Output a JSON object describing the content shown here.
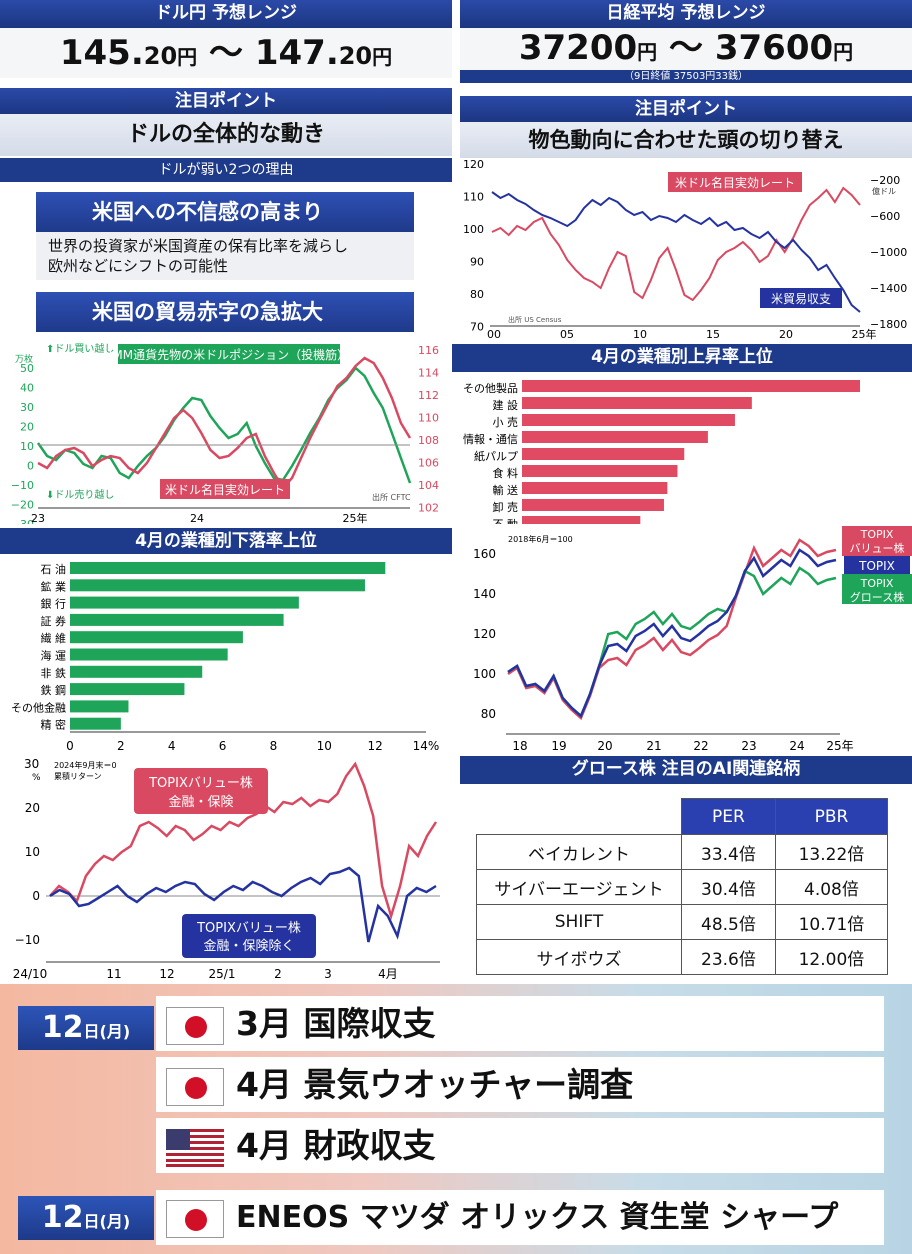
{
  "usdjpy": {
    "header": "ドル円 予想レンジ",
    "range_low": "145.",
    "range_low_dec": "20",
    "yen1": "円",
    "tilde": " ～ ",
    "range_high": "147.",
    "range_high_dec": "20",
    "yen2": "円",
    "focus_header": "注目ポイント",
    "focus_text": "ドルの全体的な動き",
    "reasons_header": "ドルが弱い2つの理由",
    "reason1_title": "米国への不信感の高まり",
    "reason1_body_line1": "世界の投資家が米国資産の保有比率を減らし",
    "reason1_body_line2": "欧州などにシフトの可能性",
    "reason2_title": "米国の貿易赤字の急拡大"
  },
  "nikkei": {
    "header": "日経平均 予想レンジ",
    "range_low": "37200",
    "yen1": "円",
    "tilde": " ～ ",
    "range_high": "37600",
    "yen2": "円",
    "close_note": "（9日終値 37503円33銭）",
    "focus_header": "注目ポイント",
    "focus_text": "物色動向に合わせた頭の切り替え"
  },
  "charts": {
    "imm": {
      "left_unit": "万枚",
      "buy_label": "⬆ドル買い越し",
      "sell_label": "⬇ドル売り越し",
      "left_ticks": [
        "50",
        "40",
        "30",
        "20",
        "10",
        "0",
        "−10",
        "−20",
        "−30"
      ],
      "right_ticks": [
        "116",
        "114",
        "112",
        "110",
        "108",
        "106",
        "104",
        "102"
      ],
      "x_ticks": [
        "23",
        "24",
        "25年"
      ],
      "green_label": "IMM通貨先物の米ドルポジション（投機筋）",
      "red_label": "米ドル名目実効レート",
      "source": "出所 CFTC"
    },
    "trade": {
      "left_ticks": [
        "120",
        "110",
        "100",
        "90",
        "80",
        "70"
      ],
      "right_ticks": [
        "−200",
        "−600",
        "−1000",
        "−1400",
        "−1800"
      ],
      "right_unit": "億ドル",
      "x_ticks": [
        "00",
        "05",
        "10",
        "15",
        "20",
        "25年"
      ],
      "red_label": "米ドル名目実効レート",
      "blue_label": "米貿易収支",
      "source": "出所 US Census"
    },
    "up": {
      "header": "4月の業種別上昇率上位",
      "categories": [
        "その他製品",
        "建 設",
        "小 売",
        "情報・通信",
        "紙パルプ",
        "食 料",
        "輸 送",
        "卸 売",
        "不 動"
      ],
      "values": [
        100,
        68,
        63,
        55,
        48,
        46,
        43,
        42,
        35
      ]
    },
    "down": {
      "header": "4月の業種別下落率上位",
      "categories": [
        "石 油",
        "鉱 業",
        "銀 行",
        "証 券",
        "繊 維",
        "海 運",
        "非 鉄",
        "鉄 鋼",
        "その他金融",
        "精 密"
      ],
      "values": [
        12.4,
        11.6,
        9.0,
        8.4,
        6.8,
        6.2,
        5.2,
        4.5,
        2.3,
        2.0
      ],
      "x_ticks": [
        "0",
        "2",
        "4",
        "6",
        "8",
        "10",
        "12",
        "14%"
      ]
    },
    "topix": {
      "note": "2018年6月＝100",
      "left_ticks": [
        "160",
        "140",
        "120",
        "100",
        "80"
      ],
      "x_ticks": [
        "18",
        "19",
        "20",
        "21",
        "22",
        "23",
        "24",
        "25年"
      ],
      "label_value": "TOPIX\nバリュー株",
      "label_value_l1": "TOPIX",
      "label_value_l2": "バリュー株",
      "label_topix": "TOPIX",
      "label_growth_l1": "TOPIX",
      "label_growth_l2": "グロース株"
    },
    "value": {
      "unit": "%",
      "note1": "2024年9月末＝0",
      "note2": "累積リターン",
      "left_ticks": [
        "30",
        "20",
        "10",
        "0",
        "−10"
      ],
      "x_ticks": [
        "24/10",
        "11",
        "12",
        "25/1",
        "2",
        "3",
        "4月"
      ],
      "red_l1": "TOPIXバリュー株",
      "red_l2": "金融・保険",
      "blue_l1": "TOPIXバリュー株",
      "blue_l2": "金融・保険除く"
    }
  },
  "ai_table": {
    "header": "グロース株 注目のAI関連銘柄",
    "col_per": "PER",
    "col_pbr": "PBR",
    "rows": [
      {
        "name": "ベイカレント",
        "per": "33.4倍",
        "pbr": "13.22倍"
      },
      {
        "name": "サイバーエージェント",
        "per": "30.4倍",
        "pbr": "4.08倍"
      },
      {
        "name": "SHIFT",
        "per": "48.5倍",
        "pbr": "10.71倍"
      },
      {
        "name": "サイボウズ",
        "per": "23.6倍",
        "pbr": "12.00倍"
      }
    ]
  },
  "schedule": {
    "day1": "12",
    "day1_suffix": "日(月)",
    "events1": [
      {
        "flag": "jp",
        "text": "3月 国際収支"
      },
      {
        "flag": "jp",
        "text": "4月 景気ウオッチャー調査"
      },
      {
        "flag": "us",
        "text": "4月 財政収支"
      }
    ],
    "day2": "12",
    "day2_suffix": "日(月)",
    "earnings": "ENEOS マツダ オリックス 資生堂 シャープ"
  },
  "colors": {
    "navy": "#1e3a8a",
    "red": "#d94a62",
    "green": "#1fa55a",
    "blue": "#2433a0"
  }
}
